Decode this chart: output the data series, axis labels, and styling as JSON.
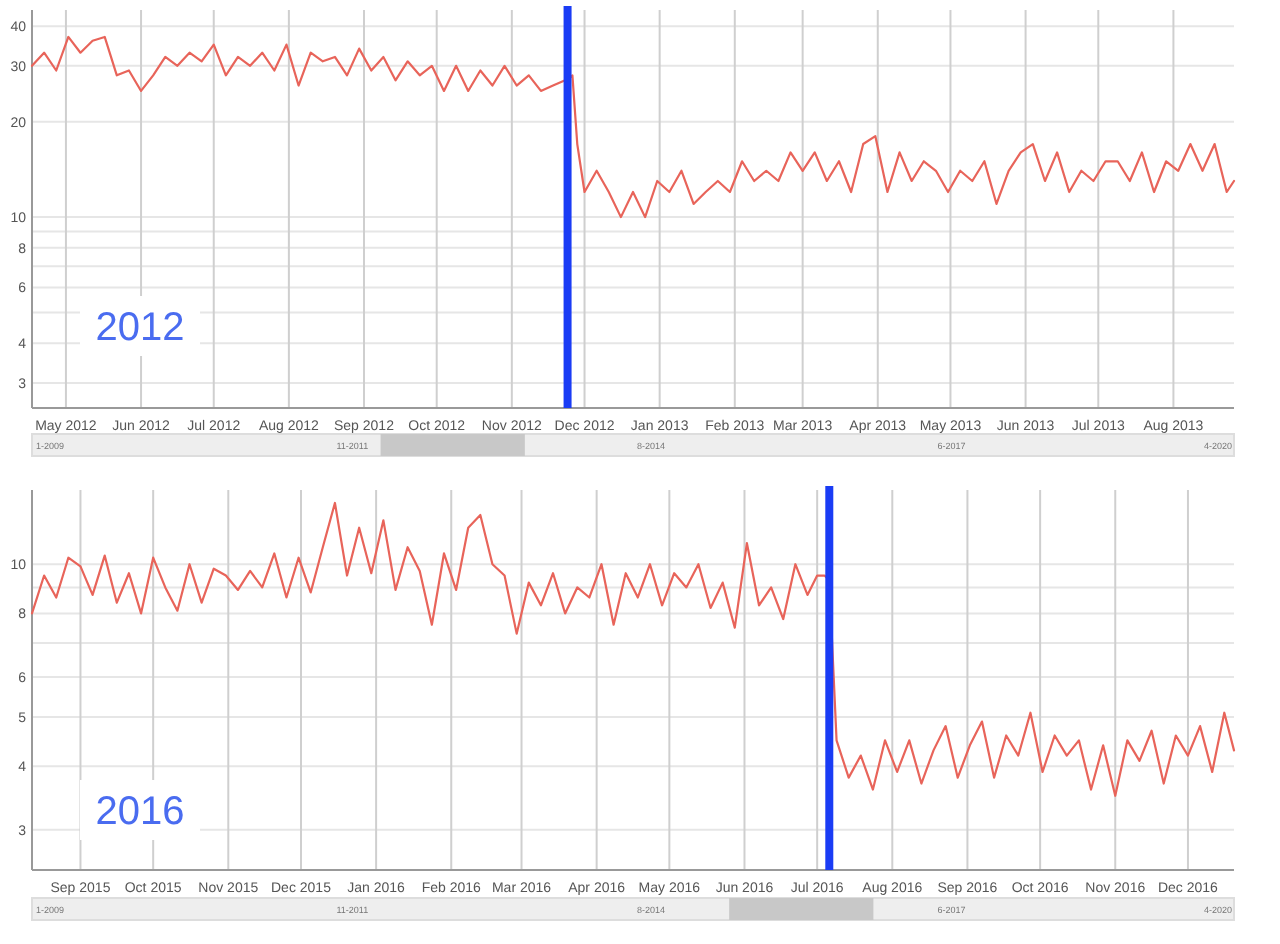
{
  "chart_data": [
    {
      "type": "line",
      "log": "y",
      "grid": true,
      "xlim": [
        "2012-04-17",
        "2013-08-26"
      ],
      "ylim": [
        2.5,
        45
      ],
      "yticks": [
        3,
        4,
        {
          "value": 5,
          "label": null
        },
        6,
        {
          "value": 7,
          "label": null
        },
        8,
        {
          "value": 9,
          "label": null
        },
        10,
        20,
        30,
        40
      ],
      "xticks": [
        {
          "value": "2012-05-01",
          "label": "May 2012"
        },
        {
          "value": "2012-06-01",
          "label": "Jun 2012"
        },
        {
          "value": "2012-07-01",
          "label": "Jul 2012"
        },
        {
          "value": "2012-08-01",
          "label": "Aug 2012"
        },
        {
          "value": "2012-09-01",
          "label": "Sep 2012"
        },
        {
          "value": "2012-10-01",
          "label": "Oct 2012"
        },
        {
          "value": "2012-11-01",
          "label": "Nov 2012"
        },
        {
          "value": "2012-12-01",
          "label": "Dec 2012"
        },
        {
          "value": "2013-01-01",
          "label": "Jan 2013"
        },
        {
          "value": "2013-02-01",
          "label": "Feb 2013"
        },
        {
          "value": "2013-03-01",
          "label": "Mar 2013"
        },
        {
          "value": "2013-04-01",
          "label": "Apr 2013"
        },
        {
          "value": "2013-05-01",
          "label": "May 2013"
        },
        {
          "value": "2013-06-01",
          "label": "Jun 2013"
        },
        {
          "value": "2013-07-01",
          "label": "Jul 2013"
        },
        {
          "value": "2013-08-01",
          "label": "Aug 2013"
        }
      ],
      "x": [
        "2012-04-17",
        "2012-04-22",
        "2012-04-27",
        "2012-05-02",
        "2012-05-07",
        "2012-05-12",
        "2012-05-17",
        "2012-05-22",
        "2012-05-27",
        "2012-06-01",
        "2012-06-06",
        "2012-06-11",
        "2012-06-16",
        "2012-06-21",
        "2012-06-26",
        "2012-07-01",
        "2012-07-06",
        "2012-07-11",
        "2012-07-16",
        "2012-07-21",
        "2012-07-26",
        "2012-07-31",
        "2012-08-05",
        "2012-08-10",
        "2012-08-15",
        "2012-08-20",
        "2012-08-25",
        "2012-08-30",
        "2012-09-04",
        "2012-09-09",
        "2012-09-14",
        "2012-09-19",
        "2012-09-24",
        "2012-09-29",
        "2012-10-04",
        "2012-10-09",
        "2012-10-14",
        "2012-10-19",
        "2012-10-24",
        "2012-10-29",
        "2012-11-03",
        "2012-11-08",
        "2012-11-13",
        "2012-11-18",
        "2012-11-23",
        "2012-11-26",
        "2012-11-28",
        "2012-12-01",
        "2012-12-06",
        "2012-12-11",
        "2012-12-16",
        "2012-12-21",
        "2012-12-26",
        "2012-12-31",
        "2013-01-05",
        "2013-01-10",
        "2013-01-15",
        "2013-01-20",
        "2013-01-25",
        "2013-01-30",
        "2013-02-04",
        "2013-02-09",
        "2013-02-14",
        "2013-02-19",
        "2013-02-24",
        "2013-03-01",
        "2013-03-06",
        "2013-03-11",
        "2013-03-16",
        "2013-03-21",
        "2013-03-26",
        "2013-03-31",
        "2013-04-05",
        "2013-04-10",
        "2013-04-15",
        "2013-04-20",
        "2013-04-25",
        "2013-04-30",
        "2013-05-05",
        "2013-05-10",
        "2013-05-15",
        "2013-05-20",
        "2013-05-25",
        "2013-05-30",
        "2013-06-04",
        "2013-06-09",
        "2013-06-14",
        "2013-06-19",
        "2013-06-24",
        "2013-06-29",
        "2013-07-04",
        "2013-07-09",
        "2013-07-14",
        "2013-07-19",
        "2013-07-24",
        "2013-07-29",
        "2013-08-03",
        "2013-08-08",
        "2013-08-13",
        "2013-08-18",
        "2013-08-23",
        "2013-08-26"
      ],
      "series": [
        {
          "color": "#e8645a",
          "values": [
            30,
            33,
            29,
            37,
            33,
            36,
            37,
            28,
            29,
            25,
            28,
            32,
            30,
            33,
            31,
            35,
            28,
            32,
            30,
            33,
            29,
            35,
            26,
            33,
            31,
            32,
            28,
            34,
            29,
            32,
            27,
            31,
            28,
            30,
            25,
            30,
            25,
            29,
            26,
            30,
            26,
            28,
            25,
            26,
            27,
            28,
            17,
            12,
            14,
            12,
            10,
            12,
            10,
            13,
            12,
            14,
            11,
            12,
            13,
            12,
            15,
            13,
            14,
            13,
            16,
            14,
            16,
            13,
            15,
            12,
            17,
            18,
            12,
            16,
            13,
            15,
            14,
            12,
            14,
            13,
            15,
            11,
            14,
            16,
            17,
            13,
            16,
            12,
            14,
            13,
            15,
            15,
            13,
            16,
            12,
            15,
            14,
            17,
            14,
            17,
            12,
            13
          ]
        }
      ],
      "ref_lines": [
        {
          "axis": "x",
          "value": "2012-11-24",
          "color": "#1a3cf5"
        }
      ],
      "annotations": [
        "2012",
        "1-2009",
        "11-2011",
        "8-2014",
        "6-2017",
        "4-2020"
      ]
    },
    {
      "type": "line",
      "log": "y",
      "grid": true,
      "xlim": [
        "2015-08-12",
        "2016-12-20"
      ],
      "ylim": [
        2.5,
        14
      ],
      "yticks": [
        3,
        4,
        5,
        6,
        {
          "value": 7,
          "label": null
        },
        8,
        {
          "value": 9,
          "label": null
        },
        10
      ],
      "xticks": [
        {
          "value": "2015-09-01",
          "label": "Sep 2015"
        },
        {
          "value": "2015-10-01",
          "label": "Oct 2015"
        },
        {
          "value": "2015-11-01",
          "label": "Nov 2015"
        },
        {
          "value": "2015-12-01",
          "label": "Dec 2015"
        },
        {
          "value": "2016-01-01",
          "label": "Jan 2016"
        },
        {
          "value": "2016-02-01",
          "label": "Feb 2016"
        },
        {
          "value": "2016-03-01",
          "label": "Mar 2016"
        },
        {
          "value": "2016-04-01",
          "label": "Apr 2016"
        },
        {
          "value": "2016-05-01",
          "label": "May 2016"
        },
        {
          "value": "2016-06-01",
          "label": "Jun 2016"
        },
        {
          "value": "2016-07-01",
          "label": "Jul 2016"
        },
        {
          "value": "2016-08-01",
          "label": "Aug 2016"
        },
        {
          "value": "2016-09-01",
          "label": "Sep 2016"
        },
        {
          "value": "2016-10-01",
          "label": "Oct 2016"
        },
        {
          "value": "2016-11-01",
          "label": "Nov 2016"
        },
        {
          "value": "2016-12-01",
          "label": "Dec 2016"
        }
      ],
      "x": [
        "2015-08-12",
        "2015-08-17",
        "2015-08-22",
        "2015-08-27",
        "2015-09-01",
        "2015-09-06",
        "2015-09-11",
        "2015-09-16",
        "2015-09-21",
        "2015-09-26",
        "2015-10-01",
        "2015-10-06",
        "2015-10-11",
        "2015-10-16",
        "2015-10-21",
        "2015-10-26",
        "2015-10-31",
        "2015-11-05",
        "2015-11-10",
        "2015-11-15",
        "2015-11-20",
        "2015-11-25",
        "2015-11-30",
        "2015-12-05",
        "2015-12-10",
        "2015-12-15",
        "2015-12-20",
        "2015-12-25",
        "2015-12-30",
        "2016-01-04",
        "2016-01-09",
        "2016-01-14",
        "2016-01-19",
        "2016-01-24",
        "2016-01-29",
        "2016-02-03",
        "2016-02-08",
        "2016-02-13",
        "2016-02-18",
        "2016-02-23",
        "2016-02-28",
        "2016-03-04",
        "2016-03-09",
        "2016-03-14",
        "2016-03-19",
        "2016-03-24",
        "2016-03-29",
        "2016-04-03",
        "2016-04-08",
        "2016-04-13",
        "2016-04-18",
        "2016-04-23",
        "2016-04-28",
        "2016-05-03",
        "2016-05-08",
        "2016-05-13",
        "2016-05-18",
        "2016-05-23",
        "2016-05-28",
        "2016-06-02",
        "2016-06-07",
        "2016-06-12",
        "2016-06-17",
        "2016-06-22",
        "2016-06-27",
        "2016-07-01",
        "2016-07-04",
        "2016-07-06",
        "2016-07-09",
        "2016-07-14",
        "2016-07-19",
        "2016-07-24",
        "2016-07-29",
        "2016-08-03",
        "2016-08-08",
        "2016-08-13",
        "2016-08-18",
        "2016-08-23",
        "2016-08-28",
        "2016-09-02",
        "2016-09-07",
        "2016-09-12",
        "2016-09-17",
        "2016-09-22",
        "2016-09-27",
        "2016-10-02",
        "2016-10-07",
        "2016-10-12",
        "2016-10-17",
        "2016-10-22",
        "2016-10-27",
        "2016-11-01",
        "2016-11-06",
        "2016-11-11",
        "2016-11-16",
        "2016-11-21",
        "2016-11-26",
        "2016-12-01",
        "2016-12-06",
        "2016-12-11",
        "2016-12-16",
        "2016-12-20"
      ],
      "series": [
        {
          "color": "#e8645a",
          "values": [
            8,
            9.5,
            8.6,
            10.3,
            9.9,
            8.7,
            10.4,
            8.4,
            9.6,
            8,
            10.3,
            9,
            8.1,
            10,
            8.4,
            9.8,
            9.5,
            8.9,
            9.7,
            9,
            10.5,
            8.6,
            10.3,
            8.8,
            10.8,
            13.2,
            9.5,
            11.8,
            9.6,
            12.2,
            8.9,
            10.8,
            9.7,
            7.6,
            10.5,
            8.9,
            11.8,
            12.5,
            10,
            9.5,
            7.3,
            9.2,
            8.3,
            9.6,
            8,
            9,
            8.6,
            10,
            7.6,
            9.6,
            8.6,
            10,
            8.3,
            9.6,
            9,
            10,
            8.2,
            9.2,
            7.5,
            11,
            8.3,
            9,
            7.8,
            10,
            8.7,
            9.5,
            9.5,
            9.3,
            4.5,
            3.8,
            4.2,
            3.6,
            4.5,
            3.9,
            4.5,
            3.7,
            4.3,
            4.8,
            3.8,
            4.4,
            4.9,
            3.8,
            4.6,
            4.2,
            5.1,
            3.9,
            4.6,
            4.2,
            4.5,
            3.6,
            4.4,
            3.5,
            4.5,
            4.1,
            4.7,
            3.7,
            4.6,
            4.2,
            4.8,
            3.9,
            5.1,
            4.3
          ]
        }
      ],
      "ref_lines": [
        {
          "axis": "x",
          "value": "2016-07-06",
          "color": "#1a3cf5"
        }
      ],
      "annotations": [
        "2016",
        "1-2009",
        "11-2011",
        "8-2014",
        "6-2017",
        "4-2020"
      ]
    }
  ]
}
